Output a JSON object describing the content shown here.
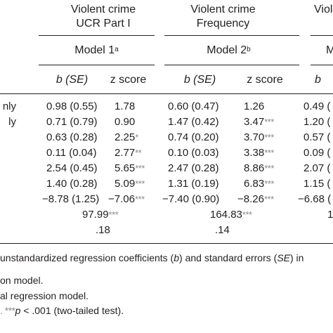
{
  "columns": {
    "group1": {
      "line1": "Violent crime",
      "line2": "UCR Part I",
      "model": "Model 1",
      "model_sup": "a"
    },
    "group2": {
      "line1": "Violent crime",
      "line2": "Frequency",
      "model": "Model 2",
      "model_sup": "b"
    },
    "group3": {
      "line1": "Violen",
      "model": "M"
    },
    "b_label": "b",
    "se_label": "(SE)",
    "z_label": "z score"
  },
  "rows": [
    {
      "label": "nly",
      "m1_b": "0.98 (0.55)",
      "m1_z": "1.78",
      "m1_stars": "",
      "m2_b": "0.60 (0.47)",
      "m2_z": "1.26",
      "m2_stars": "",
      "m3_b": "0.49 ("
    },
    {
      "label": "ly",
      "m1_b": "0.71 (0.79)",
      "m1_z": "0.90",
      "m1_stars": "",
      "m2_b": "1.47 (0.42)",
      "m2_z": "3.47",
      "m2_stars": "***",
      "m3_b": "1.20 ("
    },
    {
      "label": "",
      "m1_b": "0.63 (0.28)",
      "m1_z": "2.25",
      "m1_stars": "*",
      "m2_b": "0.74 (0.20)",
      "m2_z": "3.70",
      "m2_stars": "***",
      "m3_b": "0.57 ("
    },
    {
      "label": "",
      "m1_b": "0.11 (0.04)",
      "m1_z": "2.77",
      "m1_stars": "**",
      "m2_b": "0.10 (0.03)",
      "m2_z": "3.38",
      "m2_stars": "***",
      "m3_b": "0.09 ("
    },
    {
      "label": "",
      "m1_b": "2.54 (0.45)",
      "m1_z": "5.65",
      "m1_stars": "***",
      "m2_b": "2.47 (0.28)",
      "m2_z": "8.86",
      "m2_stars": "***",
      "m3_b": "2.07 ("
    },
    {
      "label": "",
      "m1_b": "1.40 (0.28)",
      "m1_z": "5.09",
      "m1_stars": "***",
      "m2_b": "1.31 (0.19)",
      "m2_z": "6.83",
      "m2_stars": "***",
      "m3_b": "1.15 ("
    },
    {
      "label": "",
      "m1_b": "−8.78 (1.25)",
      "m1_z": "−7.06",
      "m1_stars": "***",
      "m2_b": "−7.40 (0.90)",
      "m2_z": "−8.26",
      "m2_stars": "***",
      "m3_b": "−6.68 ("
    }
  ],
  "fit": {
    "chi_m1": "97.99",
    "chi_m1_stars": "***",
    "chi_m2": "164.83",
    "chi_m2_stars": "***",
    "chi_m3": "1",
    "r2_m1": ".18",
    "r2_m2": ".14"
  },
  "notes": {
    "line1_pre": "unstandardized regression coefficients (",
    "line1_b": "b",
    "line1_mid": ") and standard errors (",
    "line1_se": "SE",
    "line1_post": ") in",
    "line2": "on model.",
    "line3": "al regression model.",
    "line4_stars": ". ***",
    "line4_p": "p",
    "line4_post": " < .001 (two-tailed test)."
  }
}
